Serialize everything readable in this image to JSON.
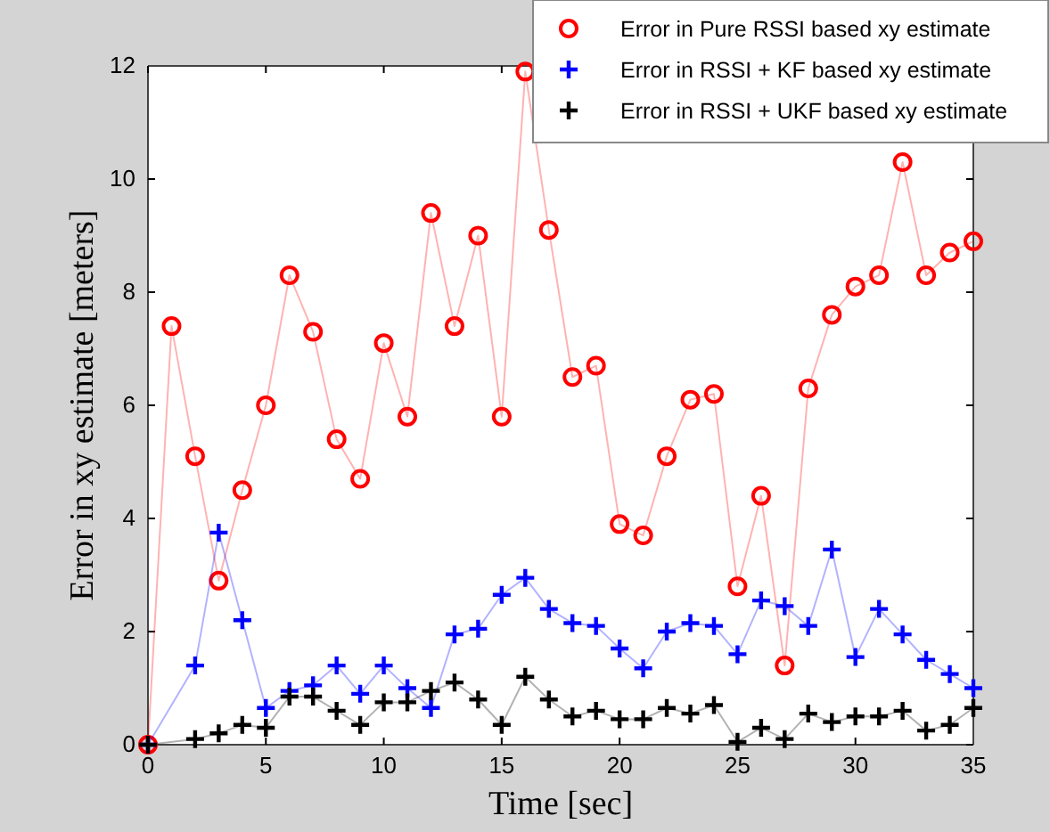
{
  "chart_data": {
    "type": "line",
    "xlabel": "Time [sec]",
    "ylabel": "Error in xy estimate [meters]",
    "xlim": [
      0,
      35
    ],
    "ylim": [
      0,
      12
    ],
    "xticks": [
      0,
      5,
      10,
      15,
      20,
      25,
      30,
      35
    ],
    "yticks": [
      0,
      2,
      4,
      6,
      8,
      10,
      12
    ],
    "grid": false,
    "legend": "top right",
    "line_style": "solid",
    "series": [
      {
        "name": "Error in Pure RSSI based xy estimate",
        "color": "#ff0000",
        "marker": "circle",
        "x": [
          0,
          1,
          2,
          3,
          4,
          5,
          6,
          7,
          8,
          9,
          10,
          11,
          12,
          13,
          14,
          15,
          16,
          17,
          18,
          19,
          20,
          21,
          22,
          23,
          24,
          25,
          26,
          27,
          28,
          29,
          30,
          31,
          32,
          33,
          34,
          35
        ],
        "values": [
          0,
          7.4,
          5.1,
          2.9,
          4.5,
          6.0,
          8.3,
          7.3,
          5.4,
          4.7,
          7.1,
          5.8,
          9.4,
          7.4,
          9.0,
          5.8,
          11.9,
          9.1,
          6.5,
          6.7,
          3.9,
          3.7,
          5.1,
          6.1,
          6.2,
          2.8,
          4.4,
          1.4,
          6.3,
          7.6,
          8.1,
          8.3,
          10.3,
          8.3,
          8.7,
          8.9
        ]
      },
      {
        "name": "Error in RSSI + KF based xy estimate",
        "color": "#0000ff",
        "marker": "cross",
        "x": [
          0,
          2,
          3,
          4,
          5,
          6,
          7,
          8,
          9,
          10,
          11,
          12,
          13,
          14,
          15,
          16,
          17,
          18,
          19,
          20,
          21,
          22,
          23,
          24,
          25,
          26,
          27,
          28,
          29,
          30,
          31,
          32,
          33,
          34,
          35
        ],
        "values": [
          0,
          1.4,
          3.75,
          2.2,
          0.65,
          0.95,
          1.05,
          1.4,
          0.9,
          1.4,
          1.0,
          0.65,
          1.95,
          2.05,
          2.65,
          2.95,
          2.4,
          2.15,
          2.1,
          1.7,
          1.35,
          2.0,
          2.15,
          2.1,
          1.6,
          2.55,
          2.45,
          2.1,
          3.45,
          1.55,
          2.4,
          1.95,
          1.5,
          1.25,
          1.0
        ]
      },
      {
        "name": "Error in RSSI + UKF based xy estimate",
        "color": "#000000",
        "marker": "cross",
        "x": [
          0,
          2,
          3,
          4,
          5,
          6,
          7,
          8,
          9,
          10,
          11,
          12,
          13,
          14,
          15,
          16,
          17,
          18,
          19,
          20,
          21,
          22,
          23,
          24,
          25,
          26,
          27,
          28,
          29,
          30,
          31,
          32,
          33,
          34,
          35
        ],
        "values": [
          0,
          0.1,
          0.2,
          0.35,
          0.3,
          0.85,
          0.85,
          0.6,
          0.35,
          0.75,
          0.75,
          0.95,
          1.1,
          0.8,
          0.35,
          1.2,
          0.8,
          0.5,
          0.6,
          0.45,
          0.45,
          0.65,
          0.55,
          0.7,
          0.05,
          0.3,
          0.1,
          0.55,
          0.4,
          0.5,
          0.5,
          0.6,
          0.25,
          0.35,
          0.65
        ]
      }
    ]
  }
}
